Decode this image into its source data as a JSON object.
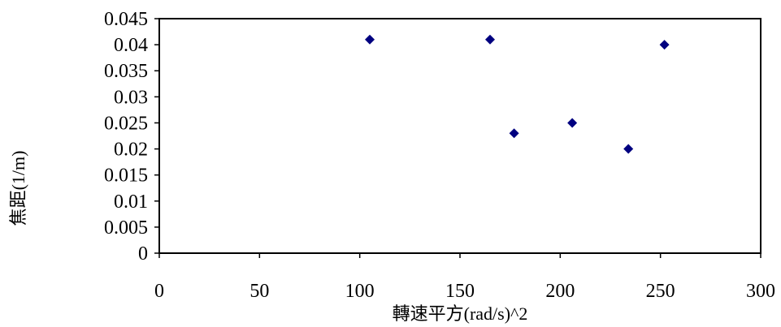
{
  "chart_data": {
    "type": "scatter",
    "title": "",
    "xlabel": "轉速平方(rad/s)^2",
    "ylabel": "焦距(1/m)",
    "xlim": [
      0,
      300
    ],
    "ylim": [
      0,
      0.045
    ],
    "x_ticks": [
      "0",
      "50",
      "100",
      "150",
      "200",
      "250",
      "300"
    ],
    "y_ticks": [
      "0",
      "0.005",
      "0.01",
      "0.015",
      "0.02",
      "0.025",
      "0.03",
      "0.035",
      "0.04",
      "0.045"
    ],
    "grid": false,
    "legend": "none",
    "marker": "diamond",
    "marker_color": "#000080",
    "series": [
      {
        "points": [
          {
            "x": 105,
            "y": 0.041
          },
          {
            "x": 165,
            "y": 0.041
          },
          {
            "x": 177,
            "y": 0.023
          },
          {
            "x": 206,
            "y": 0.025
          },
          {
            "x": 234,
            "y": 0.02
          },
          {
            "x": 252,
            "y": 0.04
          }
        ]
      }
    ]
  }
}
